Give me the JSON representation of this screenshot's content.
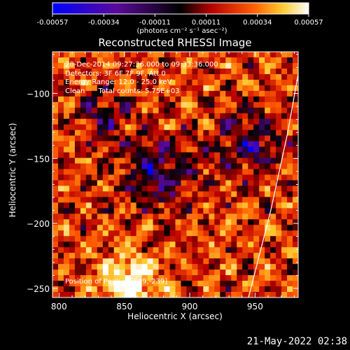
{
  "title": "Reconstructed RHESSI Image",
  "colorbar": {
    "tick_labels": [
      "-0.00057",
      "-0.00034",
      "-0.00011",
      "0.00011",
      "0.00034",
      "0.00057"
    ],
    "unit_label": "(photons cm⁻² s⁻¹ asec⁻²)",
    "range": [
      -0.00057,
      0.00057
    ]
  },
  "info_lines": [
    "28-Dec-2014 09:27:36.000 to 09:33:36.000",
    "Detectors: 3F 6F 7F 9F, Att 0",
    "Energy Range: 12.0 - 25.0 keV",
    "Clean      Total counts: 5.75E+03"
  ],
  "peak_label": "Position of Peak = [849,-239]",
  "footer_date": "21-May-2022 02:38",
  "chart_data": {
    "type": "heatmap",
    "title": "Reconstructed RHESSI Image",
    "xlabel": "Heliocentric X (arcsec)",
    "ylabel": "Heliocentric Y (arcsec)",
    "xlim": [
      795,
      983
    ],
    "ylim": [
      -257,
      -68
    ],
    "x_ticks": [
      800,
      850,
      900,
      950
    ],
    "y_ticks": [
      -100,
      -150,
      -200,
      -250
    ],
    "x_tick_labels": [
      "800",
      "850",
      "900",
      "950"
    ],
    "y_tick_labels": [
      "−100",
      "−150",
      "−200",
      "−250"
    ],
    "peak_position": [
      849,
      -239
    ],
    "colormap": [
      "#0000ff",
      "#5a0a9a",
      "#000000",
      "#b80000",
      "#ff5a00",
      "#ffcc33",
      "#ffffff"
    ],
    "limb_line": [
      [
        945,
        -257
      ],
      [
        962,
        -190
      ],
      [
        975,
        -130
      ],
      [
        983,
        -85
      ]
    ]
  }
}
